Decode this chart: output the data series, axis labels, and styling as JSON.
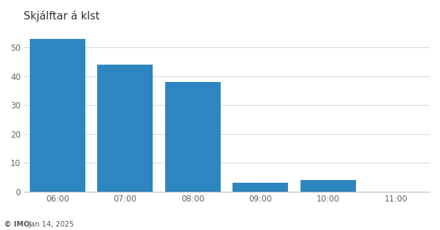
{
  "title": "Skjálftar á klst",
  "categories": [
    "06:00",
    "07:00",
    "08:00",
    "09:00",
    "10:00",
    "11:00"
  ],
  "values": [
    53,
    44,
    38,
    3,
    4,
    0
  ],
  "bar_color": "#2e86c1",
  "background_color": "#ffffff",
  "ylabel_ticks": [
    0,
    10,
    20,
    30,
    40,
    50
  ],
  "ylim": [
    0,
    57
  ],
  "footer_line1": "© IMO",
  "footer_line2": "Jan 14, 2025",
  "title_fontsize": 11,
  "tick_fontsize": 8.5,
  "footer_fontsize": 7.5
}
